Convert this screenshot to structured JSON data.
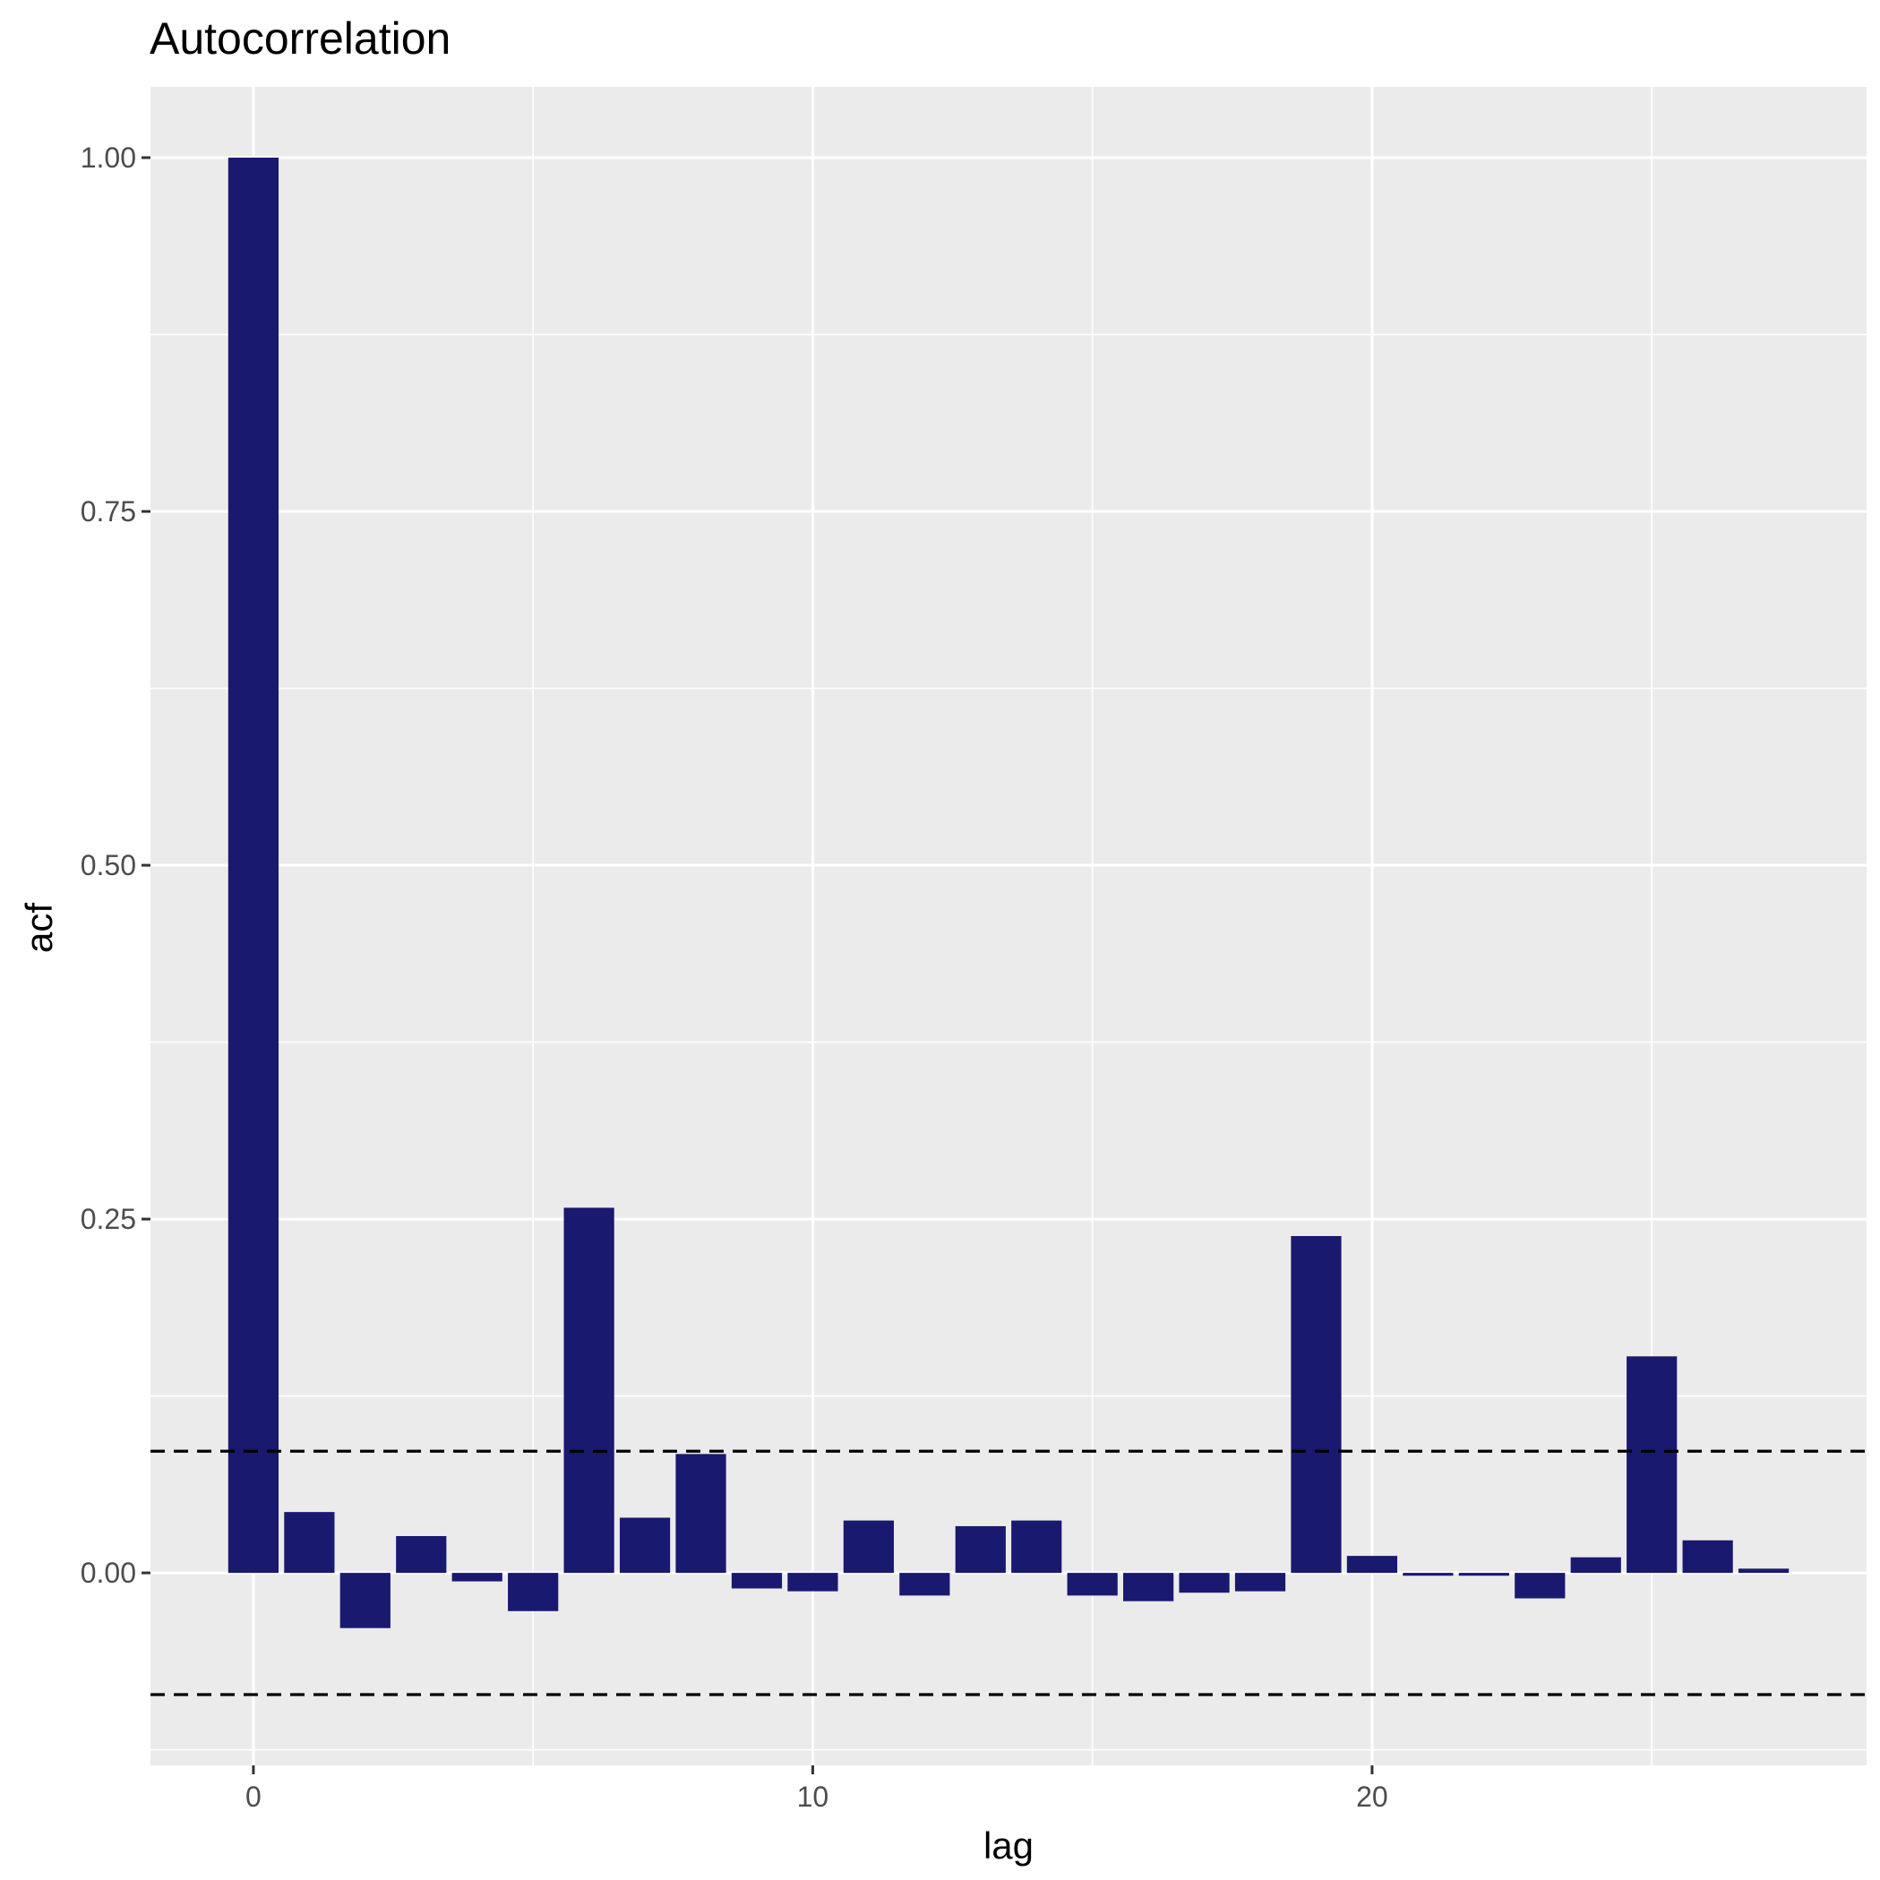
{
  "chart_data": {
    "type": "bar",
    "title": "Autocorrelation",
    "xlabel": "lag",
    "ylabel": "acf",
    "x": [
      0,
      1,
      2,
      3,
      4,
      5,
      6,
      7,
      8,
      9,
      10,
      11,
      12,
      13,
      14,
      15,
      16,
      17,
      18,
      19,
      20,
      21,
      22,
      23,
      24,
      25,
      26,
      27
    ],
    "values": [
      1.0,
      0.043,
      -0.039,
      0.026,
      -0.006,
      -0.027,
      0.258,
      0.039,
      0.084,
      -0.011,
      -0.013,
      0.037,
      -0.016,
      0.033,
      0.037,
      -0.016,
      -0.02,
      -0.014,
      -0.013,
      0.238,
      0.012,
      -0.002,
      -0.002,
      -0.018,
      0.011,
      0.153,
      0.023,
      0.003
    ],
    "confidence_bounds": [
      0.086,
      -0.086
    ],
    "xlim": [
      -1.84,
      28.84
    ],
    "ylim": [
      -0.136,
      1.05
    ],
    "x_ticks": [
      0,
      10,
      20
    ],
    "x_tick_labels": [
      "0",
      "10",
      "20"
    ],
    "y_ticks": [
      0,
      0.25,
      0.5,
      0.75,
      1.0
    ],
    "y_tick_labels": [
      "0.00",
      "0.25",
      "0.50",
      "0.75",
      "1.00"
    ],
    "grid": true,
    "bar_color": "#191970",
    "panel_color": "#ebebeb",
    "grid_color": "#ffffff",
    "bound_line_color": "#000000",
    "bound_line_style": "dashed"
  }
}
